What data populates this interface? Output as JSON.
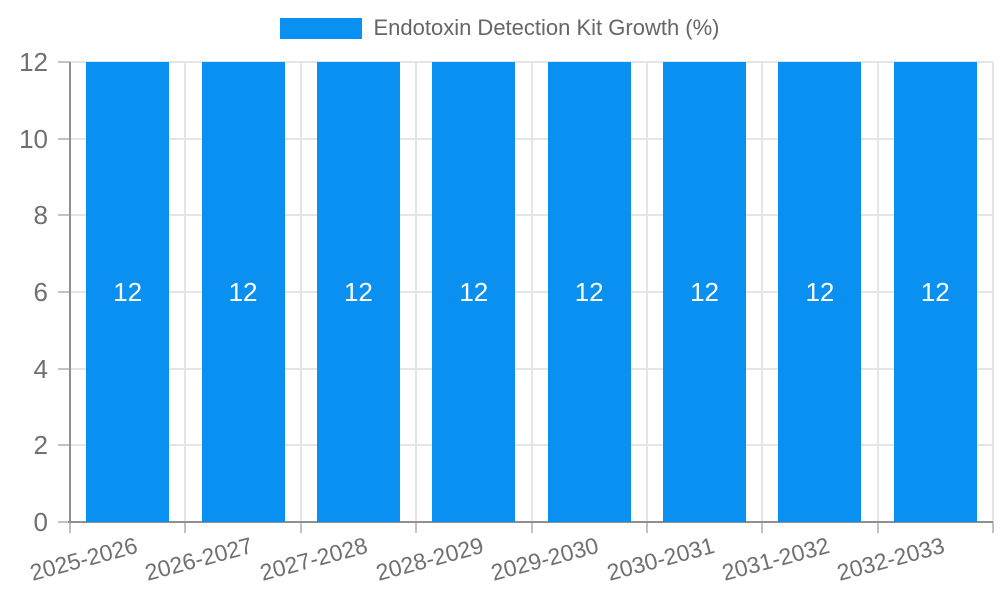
{
  "chart_data": {
    "type": "bar",
    "title": "Endotoxin Detection Kit Growth (%)",
    "categories": [
      "2025-2026",
      "2026-2027",
      "2027-2028",
      "2028-2029",
      "2029-2030",
      "2030-2031",
      "2031-2032",
      "2032-2033"
    ],
    "series": [
      {
        "name": "Endotoxin Detection Kit Growth (%)",
        "values": [
          12,
          12,
          12,
          12,
          12,
          12,
          12,
          12
        ]
      }
    ],
    "xlabel": "",
    "ylabel": "",
    "ylim": [
      0,
      12
    ],
    "yticks": [
      0,
      2,
      4,
      6,
      8,
      10,
      12
    ],
    "grid": true,
    "legend_position": "top-center",
    "x_label_rotation_deg": -15,
    "colors": {
      "bar": "#0A90F0",
      "grid": "#e5e5e5",
      "axis_line": "#909090",
      "tick": "#c2c2c2",
      "axis_text": "#707070",
      "legend_text": "#666666",
      "value_label": "#ffffff",
      "background": "#ffffff"
    }
  }
}
